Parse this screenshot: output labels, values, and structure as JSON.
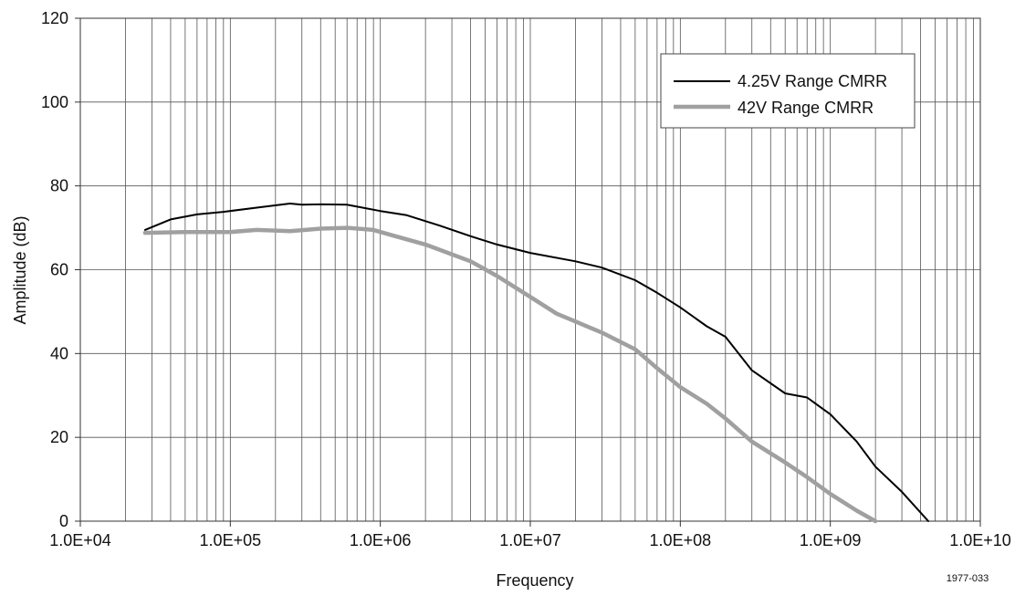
{
  "chart_data": {
    "type": "line",
    "xlabel": "Frequency",
    "ylabel": "Amplitude (dB)",
    "x_scale": "log",
    "xlim": [
      10000,
      10000000000
    ],
    "ylim": [
      0,
      120
    ],
    "grid": true,
    "x_tick_labels": [
      "1.0E+04",
      "1.0E+05",
      "1.0E+06",
      "1.0E+07",
      "1.0E+08",
      "1.0E+09",
      "1.0E+10"
    ],
    "x_tick_values": [
      10000,
      100000,
      1000000,
      10000000,
      100000000,
      1000000000,
      10000000000
    ],
    "y_tick_labels": [
      "0",
      "20",
      "40",
      "60",
      "80",
      "100",
      "120"
    ],
    "y_tick_values": [
      0,
      20,
      40,
      60,
      80,
      100,
      120
    ],
    "legend_position": "top-right",
    "series": [
      {
        "name": "4.25V Range CMRR",
        "color": "#000000",
        "line_style": "thin",
        "x": [
          27000,
          40000,
          60000,
          90000,
          150000,
          250000,
          300000,
          400000,
          600000,
          1000000,
          1500000,
          2500000,
          4000000,
          6000000,
          10000000,
          20000000,
          30000000,
          50000000,
          70000000,
          100000000,
          150000000,
          200000000,
          300000000,
          500000000,
          700000000,
          1000000000,
          1500000000,
          2000000000,
          3000000000,
          4500000000
        ],
        "y": [
          69.5,
          72,
          73.2,
          73.8,
          74.8,
          75.8,
          75.5,
          75.6,
          75.5,
          74,
          73,
          70.5,
          68,
          66,
          64,
          62,
          60.5,
          57.5,
          54.5,
          51,
          46.5,
          44,
          36,
          30.5,
          29.5,
          25.5,
          19,
          13,
          7,
          0
        ]
      },
      {
        "name": "42V Range CMRR",
        "color": "#a0a0a0",
        "line_style": "thick",
        "x": [
          27000,
          50000,
          100000,
          150000,
          250000,
          400000,
          600000,
          900000,
          1200000,
          2000000,
          4000000,
          6000000,
          10000000,
          15000000,
          30000000,
          50000000,
          70000000,
          100000000,
          150000000,
          200000000,
          300000000,
          500000000,
          700000000,
          1000000000,
          1500000000,
          2000000000
        ],
        "y": [
          68.8,
          69,
          69,
          69.5,
          69.2,
          69.8,
          70,
          69.5,
          68.2,
          66,
          62,
          58.5,
          53.5,
          49.5,
          45,
          41,
          36.5,
          32,
          28,
          24.5,
          19,
          14,
          10.5,
          6.5,
          2.5,
          0
        ]
      }
    ],
    "annotation": "1977-033"
  }
}
